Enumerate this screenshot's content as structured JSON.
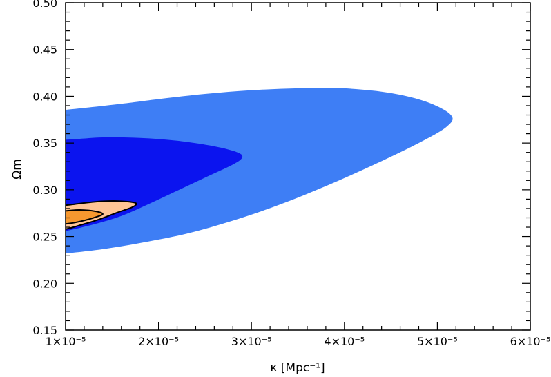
{
  "chart_data": {
    "type": "contour",
    "title": "",
    "xlabel": "κ [Mpc⁻¹]",
    "ylabel": "Ωm",
    "xlim": [
      1e-05,
      6e-05
    ],
    "ylim": [
      0.15,
      0.5
    ],
    "x_ticks": [
      {
        "value": 1e-05,
        "label": "1×10⁻⁵"
      },
      {
        "value": 2e-05,
        "label": "2×10⁻⁵"
      },
      {
        "value": 3e-05,
        "label": "3×10⁻⁵"
      },
      {
        "value": 4e-05,
        "label": "4×10⁻⁵"
      },
      {
        "value": 5e-05,
        "label": "5×10⁻⁵"
      },
      {
        "value": 6e-05,
        "label": "6×10⁻⁵"
      }
    ],
    "y_ticks": [
      {
        "value": 0.15,
        "label": "0.15"
      },
      {
        "value": 0.2,
        "label": "0.20"
      },
      {
        "value": 0.25,
        "label": "0.25"
      },
      {
        "value": 0.3,
        "label": "0.30"
      },
      {
        "value": 0.35,
        "label": "0.35"
      },
      {
        "value": 0.4,
        "label": "0.40"
      },
      {
        "value": 0.45,
        "label": "0.45"
      },
      {
        "value": 0.5,
        "label": "0.50"
      }
    ],
    "grid": false,
    "legend": "none",
    "colors": {
      "outer_blue": "#3e7ef5",
      "inner_blue": "#0b14ef",
      "outer_orange": "#ffc595",
      "inner_orange": "#f6982f",
      "outline": "#000000"
    },
    "contours": [
      {
        "name": "",
        "color_key": "outer_blue",
        "stroke": false,
        "points": [
          [
            1e-05,
            0.3855
          ],
          [
            1.6e-05,
            0.392
          ],
          [
            2e-05,
            0.397
          ],
          [
            2.5e-05,
            0.4025
          ],
          [
            3e-05,
            0.4065
          ],
          [
            3.5e-05,
            0.4085
          ],
          [
            4e-05,
            0.4085
          ],
          [
            4.5e-05,
            0.4035
          ],
          [
            4.9e-05,
            0.3935
          ],
          [
            5.15e-05,
            0.3795
          ],
          [
            5.1e-05,
            0.3675
          ],
          [
            4.8e-05,
            0.35
          ],
          [
            4.3e-05,
            0.326
          ],
          [
            3.8e-05,
            0.304
          ],
          [
            3.3e-05,
            0.284
          ],
          [
            2.8e-05,
            0.267
          ],
          [
            2.3e-05,
            0.253
          ],
          [
            1.8e-05,
            0.243
          ],
          [
            1.4e-05,
            0.2365
          ],
          [
            1e-05,
            0.232
          ]
        ]
      },
      {
        "name": "",
        "color_key": "inner_blue",
        "stroke": false,
        "points": [
          [
            1e-05,
            0.3535
          ],
          [
            1.4e-05,
            0.356
          ],
          [
            1.8e-05,
            0.3555
          ],
          [
            2.2e-05,
            0.3525
          ],
          [
            2.6e-05,
            0.3465
          ],
          [
            2.85e-05,
            0.34
          ],
          [
            2.9e-05,
            0.3345
          ],
          [
            2.8e-05,
            0.327
          ],
          [
            2.5e-05,
            0.313
          ],
          [
            2.2e-05,
            0.299
          ],
          [
            1.9e-05,
            0.285
          ],
          [
            1.6e-05,
            0.272
          ],
          [
            1.3e-05,
            0.263
          ],
          [
            1e-05,
            0.256
          ]
        ]
      },
      {
        "name": "",
        "color_key": "outer_orange",
        "stroke": true,
        "points": [
          [
            1e-05,
            0.2835
          ],
          [
            1.3e-05,
            0.287
          ],
          [
            1.55e-05,
            0.288
          ],
          [
            1.75e-05,
            0.286
          ],
          [
            1.72e-05,
            0.2815
          ],
          [
            1.55e-05,
            0.2755
          ],
          [
            1.35e-05,
            0.268
          ],
          [
            1.15e-05,
            0.262
          ],
          [
            1e-05,
            0.258
          ]
        ]
      },
      {
        "name": "",
        "color_key": "inner_orange",
        "stroke": true,
        "points": [
          [
            1e-05,
            0.2775
          ],
          [
            1.15e-05,
            0.2785
          ],
          [
            1.32e-05,
            0.277
          ],
          [
            1.4e-05,
            0.274
          ],
          [
            1.3e-05,
            0.27
          ],
          [
            1.15e-05,
            0.266
          ],
          [
            1e-05,
            0.2635
          ]
        ]
      }
    ]
  }
}
